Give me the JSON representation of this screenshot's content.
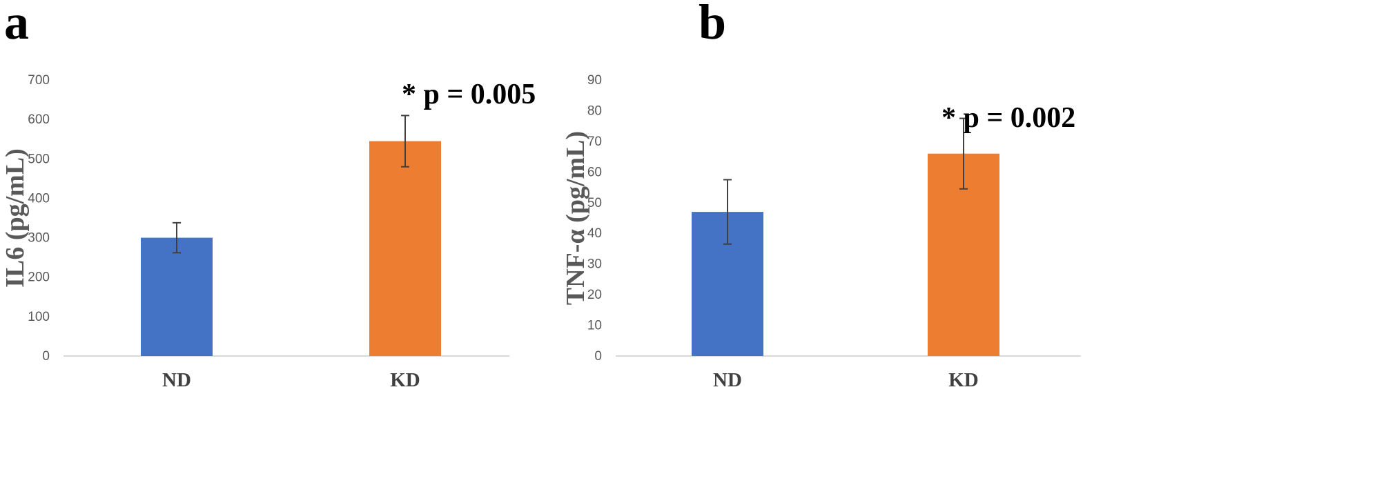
{
  "panels": [
    {
      "letter": "a"
    },
    {
      "letter": "b"
    }
  ],
  "chart_data": [
    {
      "type": "bar",
      "categories": [
        "ND",
        "KD"
      ],
      "values": [
        300,
        545
      ],
      "errors": [
        38,
        65
      ],
      "colors": [
        "#4472C4",
        "#ED7D31"
      ],
      "title": "",
      "xlabel": "",
      "ylabel": "IL6 (pg/mL)",
      "ylim": [
        0,
        700
      ],
      "yticks": [
        0,
        100,
        200,
        300,
        400,
        500,
        600,
        700
      ],
      "annotation": "* p = 0.005",
      "grid": false
    },
    {
      "type": "bar",
      "categories": [
        "ND",
        "KD"
      ],
      "values": [
        47,
        66
      ],
      "errors": [
        10.5,
        11.5
      ],
      "colors": [
        "#4472C4",
        "#ED7D31"
      ],
      "title": "",
      "xlabel": "",
      "ylabel": "TNF-α (pg/mL)",
      "ylim": [
        0,
        90
      ],
      "yticks": [
        0,
        10,
        20,
        30,
        40,
        50,
        60,
        70,
        80,
        90
      ],
      "annotation": "* p = 0.002",
      "grid": false
    }
  ]
}
